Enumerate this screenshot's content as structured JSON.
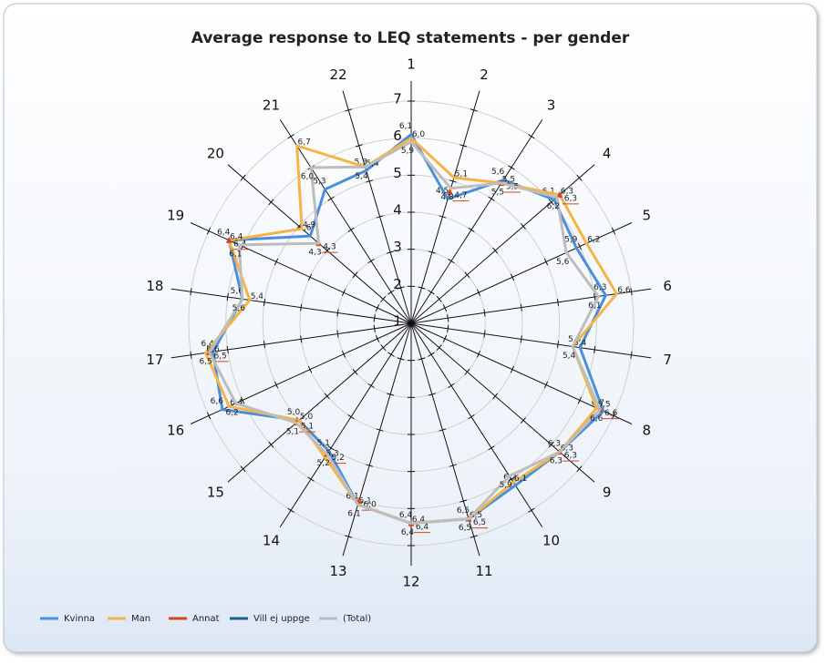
{
  "chart_data": {
    "type": "radar",
    "title": "Average response to LEQ statements - per gender",
    "categories": [
      "1",
      "2",
      "3",
      "4",
      "5",
      "6",
      "7",
      "8",
      "9",
      "10",
      "11",
      "12",
      "13",
      "14",
      "15",
      "16",
      "17",
      "18",
      "19",
      "20",
      "21",
      "22"
    ],
    "rlim": [
      1,
      7
    ],
    "rticks": [
      1,
      2,
      3,
      4,
      5,
      6,
      7
    ],
    "grid": true,
    "legend": "bottom-left",
    "series": [
      {
        "name": "Kvinna",
        "color": "#4a8fdc",
        "values": [
          6.1,
          4.5,
          5.6,
          6.1,
          5.9,
          6.3,
          5.6,
          6.7,
          6.3,
          6.2,
          6.5,
          6.4,
          6.1,
          5.1,
          5.0,
          6.6,
          6.4,
          5.6,
          6.4,
          4.6,
          5.3,
          5.3
        ],
        "value_labels": [
          "6,1",
          "4,5",
          "5,6",
          "6,1",
          "5,9",
          "6,3",
          "5,6",
          "6,7",
          "6,3",
          "6,2",
          "6,5",
          "6,4",
          "6,1",
          "5,1",
          "5,0",
          "6,6",
          "6,4",
          "5,6",
          "6,4",
          "4,6",
          "5,3",
          "5,3"
        ]
      },
      {
        "name": "Man",
        "color": "#f5b447",
        "values": [
          6.0,
          5.1,
          5.5,
          6.3,
          6.2,
          6.6,
          5.4,
          6.5,
          6.3,
          6.1,
          6.5,
          6.4,
          6.1,
          5.3,
          5.0,
          6.4,
          6.6,
          5.4,
          6.4,
          4.9,
          6.7,
          5.4
        ],
        "value_labels": [
          "6,0",
          "5,1",
          "5,5",
          "6,3",
          "6,2",
          "6,6",
          "5,4",
          "6,5",
          "6,3",
          "6,1",
          "6,5",
          "6,4",
          "6,1",
          "5,3",
          "5,0",
          "6,4",
          "6,6",
          "5,4",
          "6,4",
          "4,9",
          "6,7",
          "5,4"
        ]
      },
      {
        "name": "Annat",
        "color": "#d4461c",
        "style": "markers",
        "values": [
          null,
          4.7,
          5.5,
          6.3,
          null,
          null,
          null,
          6.6,
          6.3,
          null,
          6.5,
          6.4,
          6.0,
          5.2,
          5.1,
          null,
          6.5,
          null,
          6.4,
          4.3,
          null,
          null
        ],
        "value_labels": [
          null,
          "4,7",
          "5,5",
          "6,3",
          null,
          null,
          null,
          "6,6",
          "6,3",
          null,
          "6,5",
          "6,4",
          "6,0",
          "5,2",
          "5,1",
          null,
          "6,5",
          null,
          "6,4",
          "4,3",
          null,
          null
        ]
      },
      {
        "name": "Vill ej uppge",
        "color": "#1d5e8a",
        "values": [
          null,
          null,
          null,
          null,
          null,
          null,
          null,
          null,
          null,
          null,
          null,
          null,
          null,
          null,
          null,
          null,
          null,
          null,
          null,
          null,
          null,
          null
        ]
      },
      {
        "name": "(Total)",
        "color": "#bdbdbd",
        "values": [
          5.9,
          4.8,
          5.5,
          6.2,
          5.6,
          6.1,
          5.4,
          6.6,
          6.3,
          5.9,
          6.5,
          6.4,
          6.1,
          5.2,
          5.1,
          6.2,
          6.5,
          5.6,
          6.1,
          4.3,
          6.0,
          5.4
        ],
        "value_labels": [
          "5,9",
          "4,8",
          "5,5",
          "6,2",
          "5,6",
          "6,1",
          "5,4",
          "6,6",
          "6,3",
          "5,9",
          "6,5",
          "6,4",
          "6,1",
          "5,2",
          "5,1",
          "6,2",
          "6,5",
          "5,6",
          "6,1",
          "4,3",
          "6,0",
          "5,4"
        ]
      }
    ]
  }
}
